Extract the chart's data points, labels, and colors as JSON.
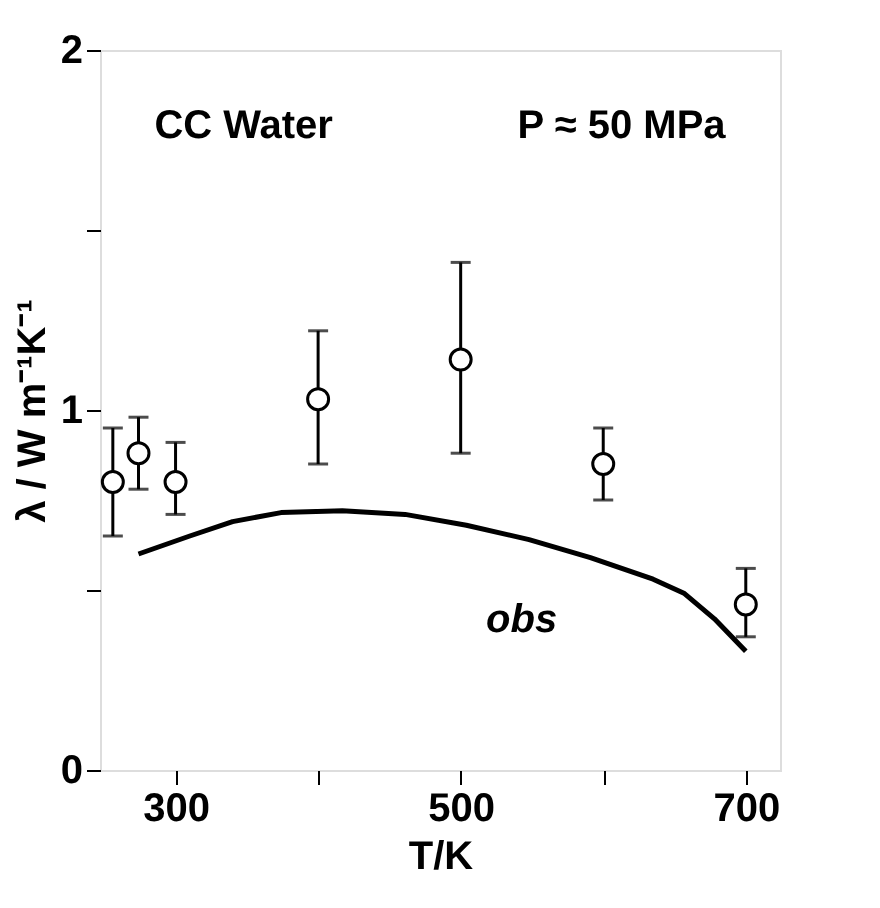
{
  "chart_data": {
    "type": "scatter",
    "xlabel": "T/K",
    "ylabel": "λ / W m⁻¹K⁻¹",
    "annotations": [
      "CC Water",
      "P ≈ 50 MPa",
      "obs"
    ],
    "series": [
      {
        "color": "#000000",
        "marker": "circle",
        "x": [
          256,
          274,
          300,
          400,
          500,
          600,
          700
        ],
        "values": [
          0.8,
          0.88,
          0.8,
          1.03,
          1.14,
          0.85,
          0.46
        ],
        "errors": [
          [
            0.65,
            0.95
          ],
          [
            0.78,
            0.98
          ],
          [
            0.71,
            0.91
          ],
          [
            0.85,
            1.22
          ],
          [
            0.88,
            1.41
          ],
          [
            0.75,
            0.95
          ],
          [
            0.37,
            0.56
          ]
        ]
      },
      {
        "type": "line",
        "color": "#000000",
        "marker": "none",
        "x": [
          274,
          310,
          340,
          374,
          417,
          461,
          504,
          548,
          591,
          635,
          657,
          678,
          700
        ],
        "values": [
          0.6,
          0.65,
          0.69,
          0.715,
          0.72,
          0.71,
          0.68,
          0.64,
          0.59,
          0.53,
          0.49,
          0.42,
          0.33
        ]
      }
    ],
    "xlim": [
      247,
      724
    ],
    "ylim": [
      0,
      2
    ],
    "xticks": [
      300,
      {
        "value": 400,
        "label": null
      },
      500,
      {
        "value": 600,
        "label": null
      },
      700
    ],
    "yticks": [
      0,
      {
        "value": 0.5,
        "label": null
      },
      1,
      {
        "value": 1.5,
        "label": null
      },
      2
    ],
    "grid": false
  }
}
